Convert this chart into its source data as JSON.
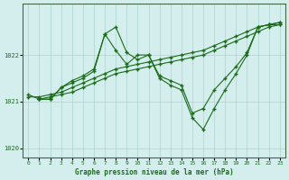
{
  "xlabel": "Graphe pression niveau de la mer (hPa)",
  "xlim": [
    -0.5,
    23.5
  ],
  "ylim": [
    1019.8,
    1023.1
  ],
  "yticks": [
    1020,
    1021,
    1022
  ],
  "xticks": [
    0,
    1,
    2,
    3,
    4,
    5,
    6,
    7,
    8,
    9,
    10,
    11,
    12,
    13,
    14,
    15,
    16,
    17,
    18,
    19,
    20,
    21,
    22,
    23
  ],
  "background_color": "#d4eeed",
  "line_color": "#1a6b1a",
  "grid_color": "#aad4d0",
  "lines": [
    {
      "x": [
        0,
        1,
        2,
        3,
        4,
        5,
        6,
        7,
        8,
        9,
        10,
        11,
        12,
        13,
        14,
        15,
        16,
        17,
        18,
        19,
        20,
        21,
        22,
        23
      ],
      "y": [
        1021.1,
        1021.1,
        1021.15,
        1021.2,
        1021.3,
        1021.4,
        1021.5,
        1021.6,
        1021.7,
        1021.75,
        1021.8,
        1021.85,
        1021.9,
        1021.95,
        1022.0,
        1022.05,
        1022.1,
        1022.2,
        1022.3,
        1022.4,
        1022.5,
        1022.6,
        1022.65,
        1022.7
      ]
    },
    {
      "x": [
        1,
        2,
        3,
        4,
        5,
        6,
        7,
        8,
        9,
        10,
        11,
        12,
        13,
        14,
        15,
        16,
        17,
        18,
        19,
        20,
        21,
        22,
        23
      ],
      "y": [
        1021.05,
        1021.1,
        1021.15,
        1021.2,
        1021.3,
        1021.4,
        1021.5,
        1021.6,
        1021.65,
        1021.7,
        1021.75,
        1021.8,
        1021.85,
        1021.9,
        1021.95,
        1022.0,
        1022.1,
        1022.2,
        1022.3,
        1022.4,
        1022.5,
        1022.6,
        1022.65
      ]
    },
    {
      "x": [
        0,
        1,
        2,
        3,
        4,
        5,
        6,
        7,
        8,
        9,
        10,
        11,
        12,
        13,
        14,
        15,
        16,
        17,
        18,
        19,
        20,
        21,
        22,
        23
      ],
      "y": [
        1021.15,
        1021.05,
        1021.05,
        1021.3,
        1021.45,
        1021.55,
        1021.7,
        1022.45,
        1022.1,
        1021.8,
        1022.0,
        1022.0,
        1021.55,
        1021.45,
        1021.35,
        1020.75,
        1020.85,
        1021.25,
        1021.5,
        1021.75,
        1022.05,
        1022.6,
        1022.65,
        1022.65
      ]
    },
    {
      "x": [
        1,
        2,
        3,
        4,
        5,
        6,
        7,
        8,
        9,
        10,
        11,
        12,
        13,
        14,
        15,
        16,
        17,
        18,
        19,
        20,
        21,
        22,
        23
      ],
      "y": [
        1021.05,
        1021.05,
        1021.3,
        1021.4,
        1021.5,
        1021.65,
        1022.45,
        1022.6,
        1022.05,
        1021.9,
        1022.0,
        1021.5,
        1021.35,
        1021.25,
        1020.65,
        1020.4,
        1020.85,
        1021.25,
        1021.6,
        1022.0,
        1022.6,
        1022.65,
        1022.7
      ]
    }
  ]
}
